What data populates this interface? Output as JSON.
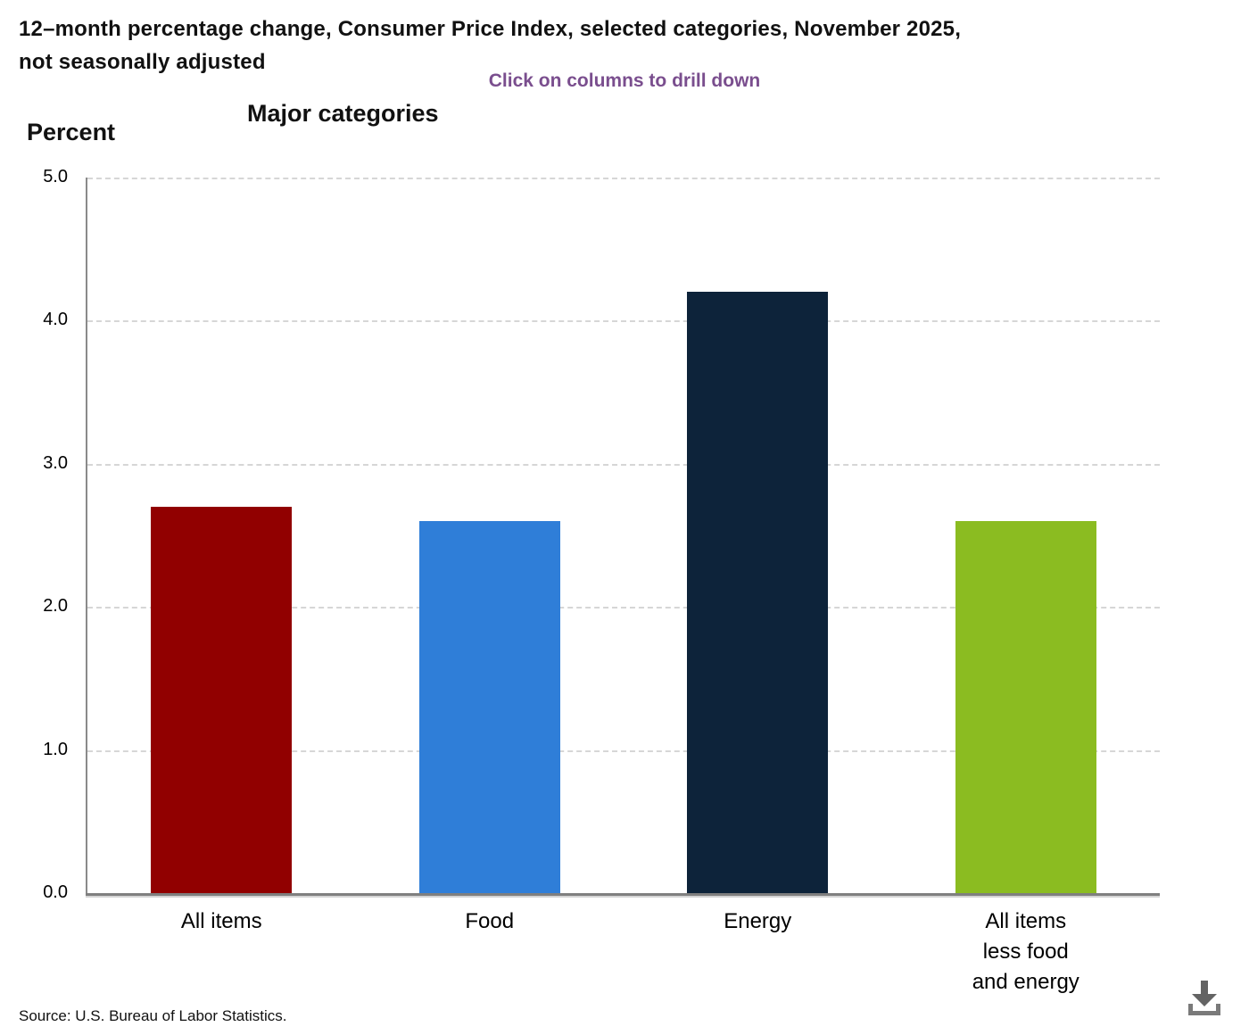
{
  "header": {
    "title_line1": "12–month percentage change, Consumer Price Index, selected categories, November 2025,",
    "title_line2": "not seasonally adjusted",
    "drilldown_hint": "Click on columns to drill down",
    "hint_color": "#7a4e8e"
  },
  "axis": {
    "y_title": "Percent"
  },
  "chart_data": {
    "type": "bar",
    "title": "Major categories",
    "categories": [
      "All items",
      "Food",
      "Energy",
      "All items less food and energy"
    ],
    "label_lines": [
      [
        "All items"
      ],
      [
        "Food"
      ],
      [
        "Energy"
      ],
      [
        "All items",
        "less food",
        "and energy"
      ]
    ],
    "values": [
      2.7,
      2.6,
      4.2,
      2.6
    ],
    "colors": [
      "#910000",
      "#2f7ed8",
      "#0d233a",
      "#8bbc21"
    ],
    "xlabel": "",
    "ylabel": "Percent",
    "ylim": [
      0,
      5
    ],
    "ytick_interval": 1,
    "ytick_labels": [
      "0.0",
      "1.0",
      "2.0",
      "3.0",
      "4.0",
      "5.0"
    ],
    "grid": "horizontal-dashed",
    "legend": "none"
  },
  "footer": {
    "source": "Source: U.S. Bureau of Labor Statistics."
  },
  "icons": {
    "download": "download chart"
  }
}
